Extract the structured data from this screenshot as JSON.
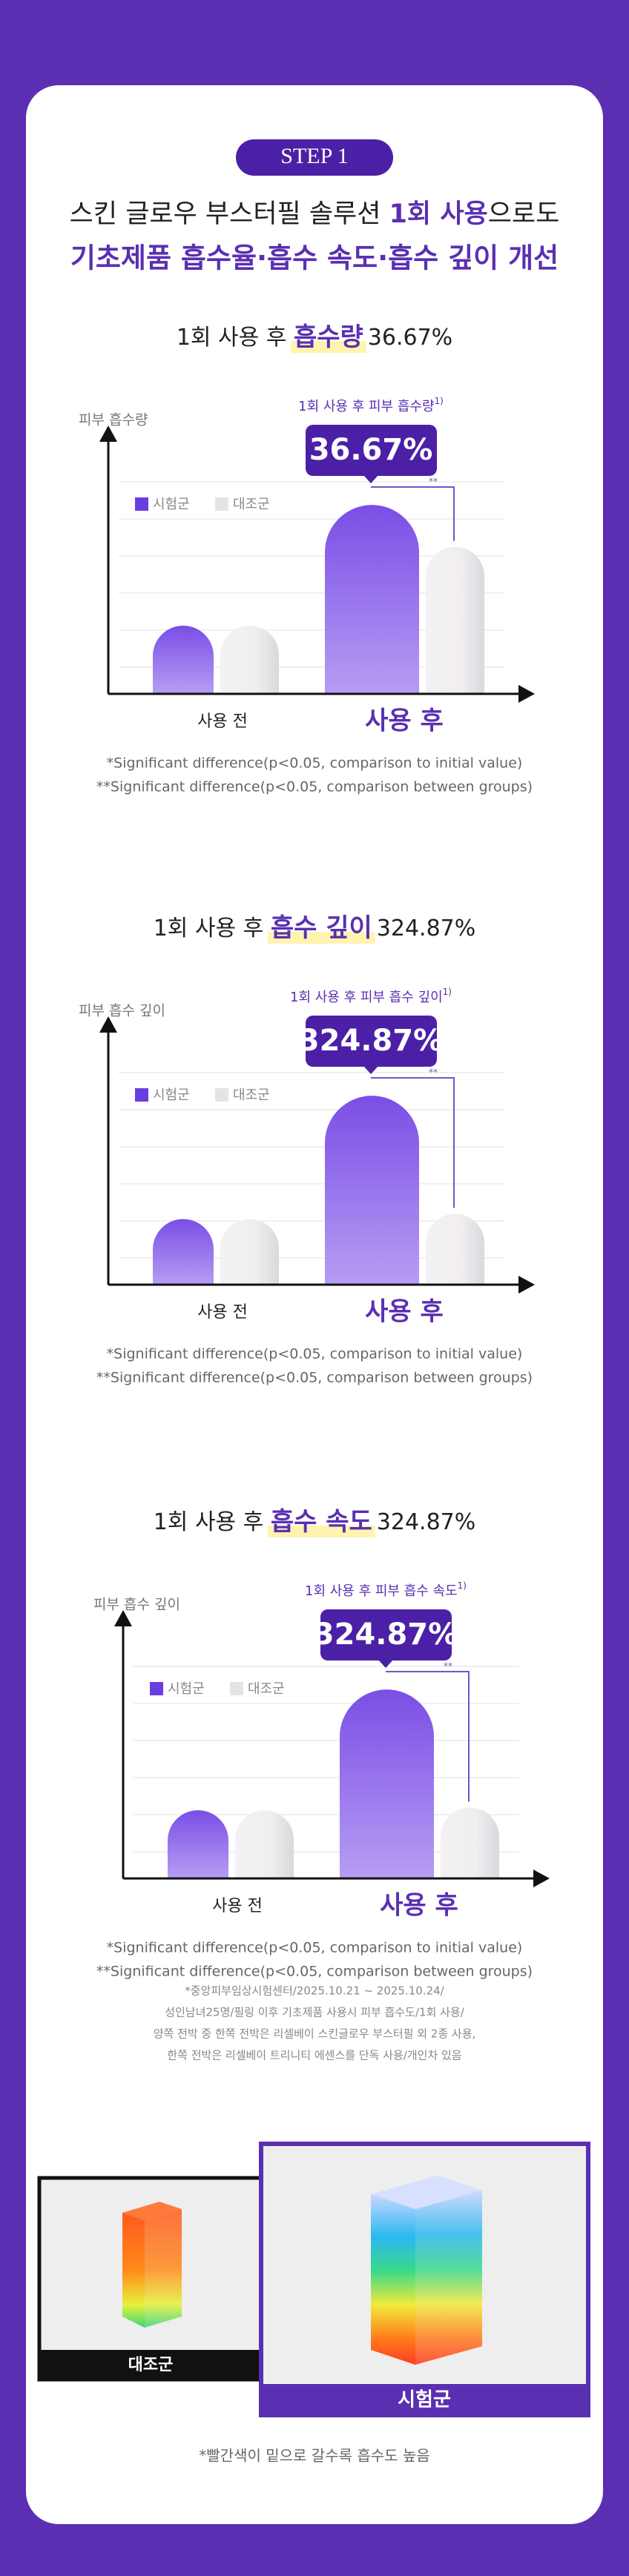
{
  "step": "STEP 1",
  "title": {
    "line1_pre": "스킨 글로우 부스터필 솔루션 ",
    "line1_em": "1회 사용",
    "line1_post": "으로도",
    "line2": "기초제품 흡수율·흡수 속도·흡수 깊이 개선"
  },
  "chart_data": [
    {
      "type": "bar",
      "heading_pre": "1회 사용 후 ",
      "heading_em": "흡수량",
      "heading_value": "36.67%",
      "y_label": "피부 흡수량",
      "callout": "1회 사용 후 피부 흡수량",
      "callout_sup": "1)",
      "callout_value": "36.67%",
      "significance": "**",
      "categories": [
        "사용 전",
        "사용 후"
      ],
      "ylim": [
        0,
        100
      ],
      "series": [
        {
          "name": "시험군",
          "color": "#6a3de0",
          "values": [
            26,
            72
          ]
        },
        {
          "name": "대조군",
          "color": "#e4e4e6",
          "values": [
            26,
            56
          ]
        }
      ],
      "footnotes": [
        "*Significant difference(p<0.05, comparison to initial value)",
        "**Significant difference(p<0.05, comparison between groups)"
      ]
    },
    {
      "type": "bar",
      "heading_pre": "1회 사용 후 ",
      "heading_em": "흡수 깊이",
      "heading_value": "324.87%",
      "y_label": "피부 흡수 깊이",
      "callout": "1회 사용 후 피부 흡수 깊이",
      "callout_sup": "1)",
      "callout_value": "324.87%",
      "significance": "**",
      "categories": [
        "사용 전",
        "사용 후"
      ],
      "ylim": [
        0,
        100
      ],
      "series": [
        {
          "name": "시험군",
          "color": "#6a3de0",
          "values": [
            25,
            72
          ]
        },
        {
          "name": "대조군",
          "color": "#e4e4e6",
          "values": [
            25,
            27
          ]
        }
      ],
      "footnotes": [
        "*Significant difference(p<0.05, comparison to initial value)",
        "**Significant difference(p<0.05, comparison between groups)"
      ]
    },
    {
      "type": "bar",
      "heading_pre": "1회 사용 후 ",
      "heading_em": "흡수 속도",
      "heading_value": "324.87%",
      "y_label": "피부 흡수 깊이",
      "callout": "1회 사용 후 피부 흡수 속도",
      "callout_sup": "1)",
      "callout_value": "324.87%",
      "significance": "**",
      "categories": [
        "사용 전",
        "사용 후"
      ],
      "ylim": [
        0,
        100
      ],
      "series": [
        {
          "name": "시험군",
          "color": "#6a3de0",
          "values": [
            26,
            72
          ]
        },
        {
          "name": "대조군",
          "color": "#e4e4e6",
          "values": [
            26,
            27
          ]
        }
      ],
      "footnotes": [
        "*Significant difference(p<0.05, comparison to initial value)",
        "**Significant difference(p<0.05, comparison between groups)"
      ]
    }
  ],
  "study_notes": [
    "*중앙피부임상시험센터/2025.10.21 ~ 2025.10.24/",
    "성인남녀25명/필링 이후 기초제품 사용시 피부 흡수도/1회 사용/",
    "양쪽 전박 중 한쪽 전박은 리셀베이 스킨글로우 부스터필 외 2종 사용,",
    "한쪽 전박은 리셀베이 트리니티 에센스를 단독 사용/개인차 있음"
  ],
  "images": {
    "control_label": "대조군",
    "test_label": "시험군",
    "note": "*빨간색이 밑으로 갈수록 흡수도 높음"
  }
}
